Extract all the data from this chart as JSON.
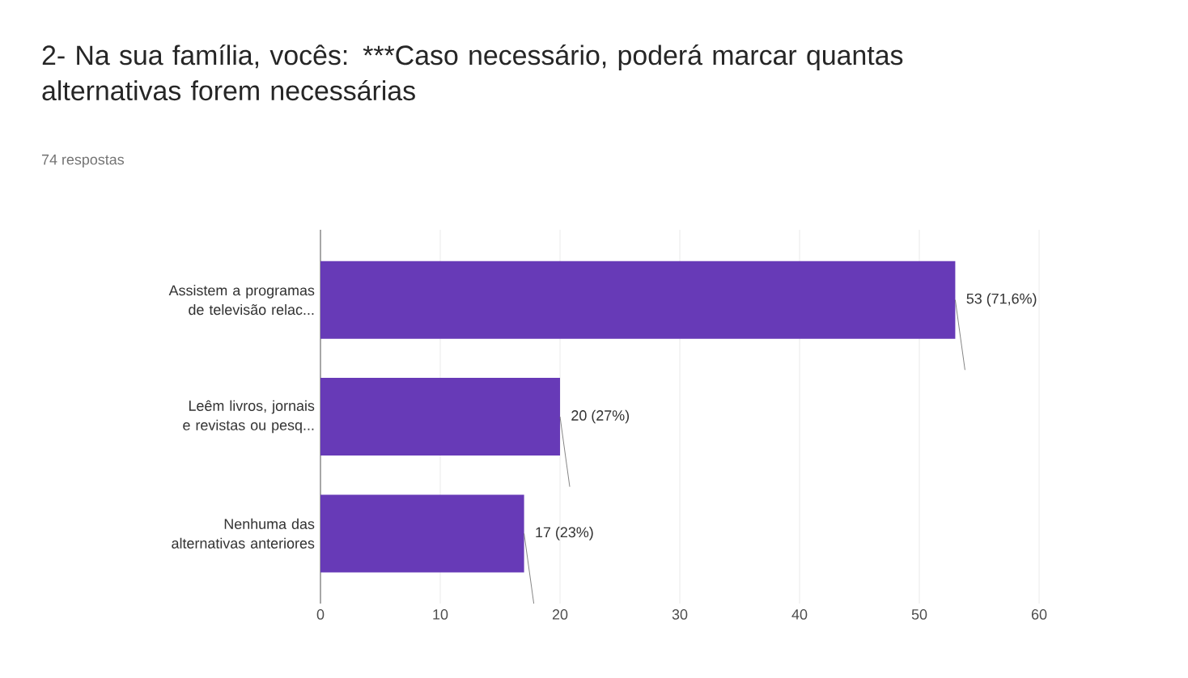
{
  "chart_data": {
    "type": "bar",
    "orientation": "horizontal",
    "title": "2- Na sua família, vocês: ***Caso necessário, poderá marcar quantas alternativas forem necessárias",
    "subtitle": "74 respostas",
    "categories": [
      "Assistem a programas de televisão relac...",
      "Leêm livros, jornais e revistas ou pesq...",
      "Nenhuma das alternativas anteriores"
    ],
    "values": [
      53,
      20,
      17
    ],
    "value_labels": [
      "53 (71,6%)",
      "20 (27%)",
      "17 (23%)"
    ],
    "color": "#673ab7",
    "xlim": [
      0,
      60
    ],
    "xticks": [
      0,
      10,
      20,
      30,
      40,
      50,
      60
    ],
    "grid": "x",
    "legend": false
  }
}
